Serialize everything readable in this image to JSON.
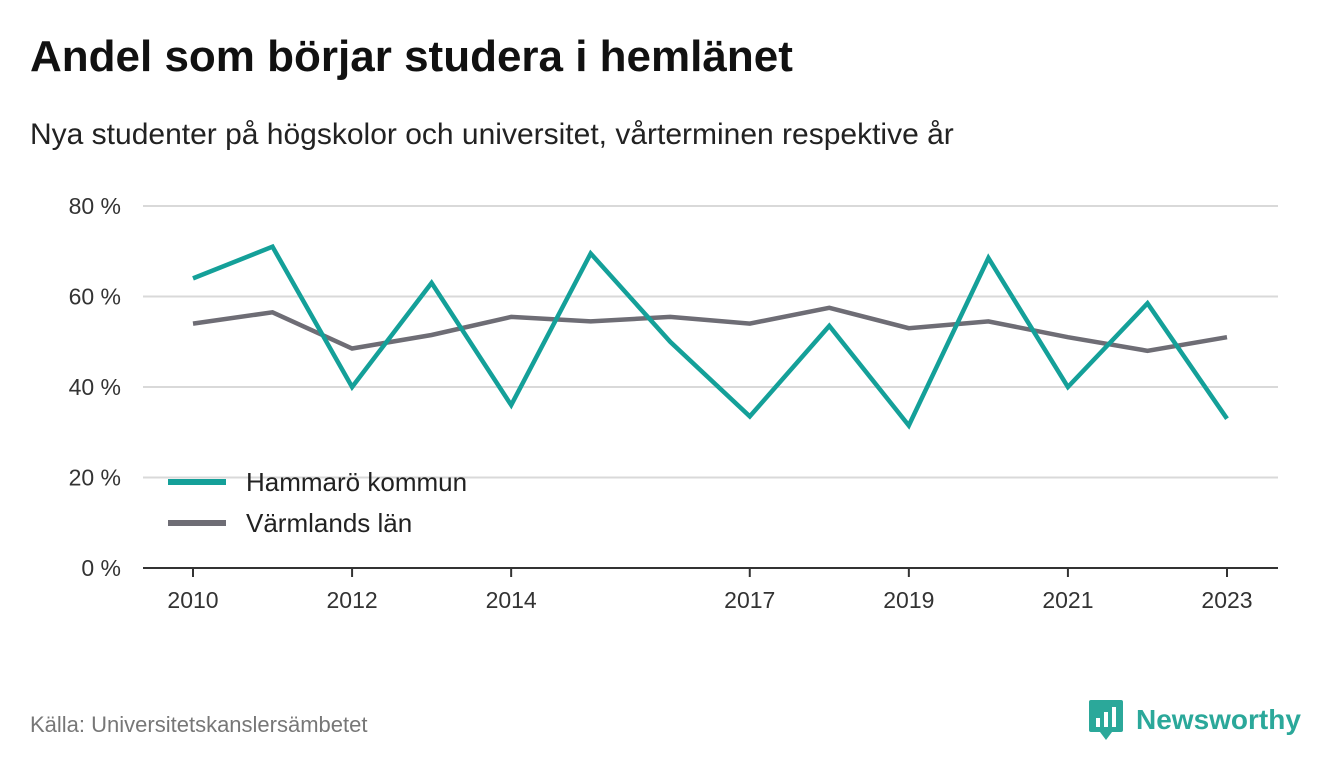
{
  "title": "Andel som börjar studera i hemlänet",
  "subtitle": "Nya studenter på högskolor och universitet, vårterminen respektive år",
  "source": "Källa: Universitetskanslersämbetet",
  "brand": {
    "name": "Newsworthy",
    "icon": "newsworthy-logo-icon",
    "color": "#2ba89a"
  },
  "chart_data": {
    "type": "line",
    "x": [
      2010,
      2011,
      2012,
      2013,
      2014,
      2015,
      2016,
      2017,
      2018,
      2019,
      2020,
      2021,
      2022,
      2023
    ],
    "x_tick_labels": [
      "2010",
      "2012",
      "2014",
      "2017",
      "2019",
      "2021",
      "2023"
    ],
    "y_tick_labels": [
      "0 %",
      "20 %",
      "40 %",
      "60 %",
      "80 %"
    ],
    "y_ticks": [
      0,
      20,
      40,
      60,
      80
    ],
    "ylim": [
      0,
      80
    ],
    "xlim": [
      2010,
      2023
    ],
    "grid": true,
    "legend_position": "bottom-left",
    "series": [
      {
        "name": "Hammarö kommun",
        "color": "#14a099",
        "values": [
          64,
          71,
          40,
          63,
          36,
          69.5,
          50,
          33.5,
          53.5,
          31.5,
          68.5,
          40,
          58.5,
          33
        ]
      },
      {
        "name": "Värmlands län",
        "color": "#6e6d75",
        "values": [
          54,
          56.5,
          48.5,
          51.5,
          55.5,
          54.5,
          55.5,
          54,
          57.5,
          53,
          54.5,
          51,
          48,
          51
        ]
      }
    ]
  }
}
